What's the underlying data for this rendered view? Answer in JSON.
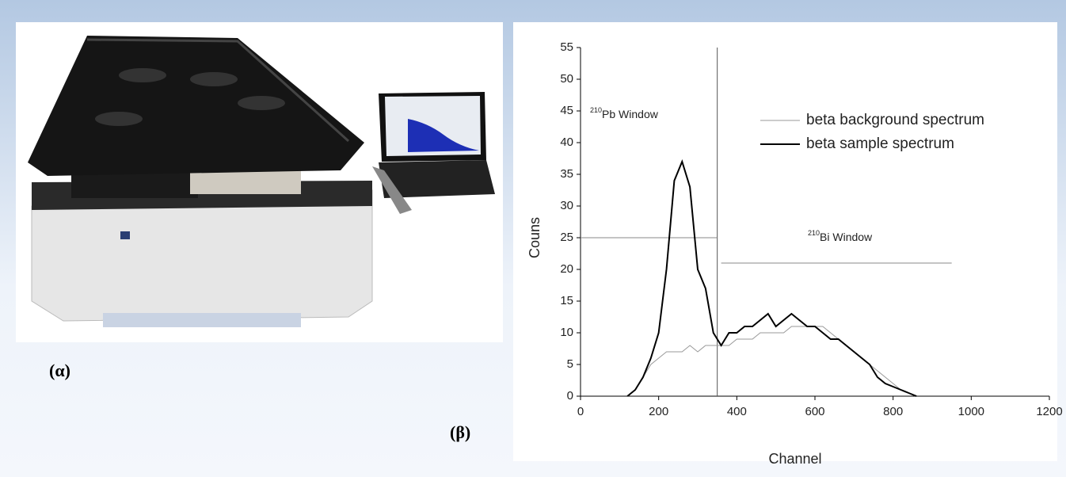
{
  "chart_data": {
    "type": "line",
    "panel_labels": [
      "(α)",
      "(β)"
    ],
    "x_label": "Channel",
    "y_label": "Couns",
    "x": [
      120,
      140,
      160,
      180,
      200,
      220,
      240,
      260,
      280,
      300,
      320,
      340,
      360,
      380,
      400,
      420,
      440,
      460,
      480,
      500,
      520,
      540,
      560,
      580,
      600,
      620,
      640,
      660,
      680,
      700,
      720,
      740,
      760,
      780,
      800,
      820,
      840,
      860
    ],
    "series": [
      {
        "name": "beta background spectrum",
        "color": "#999999",
        "width": 1,
        "values": [
          0,
          1,
          3,
          5,
          6,
          7,
          7,
          7,
          8,
          7,
          8,
          8,
          8,
          8,
          9,
          9,
          9,
          10,
          10,
          10,
          10,
          11,
          11,
          11,
          11,
          11,
          10,
          9,
          8,
          7,
          6,
          5,
          4,
          3,
          2,
          1,
          0.5,
          0
        ]
      },
      {
        "name": "beta sample spectrum",
        "color": "#000000",
        "width": 2,
        "values": [
          0,
          1,
          3,
          6,
          10,
          20,
          34,
          37,
          33,
          20,
          17,
          10,
          8,
          10,
          10,
          11,
          11,
          12,
          13,
          11,
          12,
          13,
          12,
          11,
          11,
          10,
          9,
          9,
          8,
          7,
          6,
          5,
          3,
          2,
          1.5,
          1,
          0.5,
          0
        ]
      }
    ],
    "divider": 350,
    "windows": [
      {
        "sup": "210",
        "label": "Pb Window",
        "x": [
          0,
          350
        ],
        "y": 25
      },
      {
        "sup": "210",
        "label": "Bi Window",
        "x": [
          360,
          950
        ],
        "y": 21
      }
    ],
    "xlim": [
      0,
      1200
    ],
    "xticks": [
      0,
      200,
      400,
      600,
      800,
      1000,
      1200
    ],
    "ylim": [
      0,
      55
    ],
    "yticks": [
      0,
      5,
      10,
      15,
      20,
      25,
      30,
      35,
      40,
      45,
      50,
      55
    ]
  }
}
